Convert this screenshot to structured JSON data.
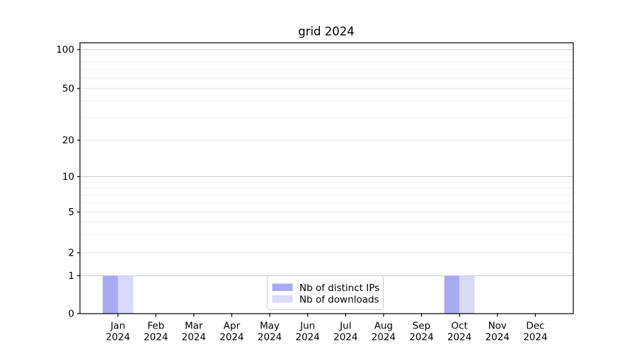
{
  "chart_data": {
    "type": "bar",
    "title": "grid 2024",
    "year_label": "2024",
    "categories": [
      "Jan",
      "Feb",
      "Mar",
      "Apr",
      "May",
      "Jun",
      "Jul",
      "Aug",
      "Sep",
      "Oct",
      "Nov",
      "Dec"
    ],
    "series": [
      {
        "name": "Nb of distinct IPs",
        "color": "#a9a9f2",
        "values": [
          1,
          0,
          0,
          0,
          0,
          0,
          0,
          0,
          0,
          1,
          0,
          0
        ]
      },
      {
        "name": "Nb of downloads",
        "color": "#d9d9f8",
        "values": [
          1,
          0,
          0,
          0,
          0,
          0,
          0,
          0,
          0,
          1,
          0,
          0
        ]
      }
    ],
    "xlabel": "",
    "ylabel": "",
    "y_axis": {
      "scale": "quasi-log",
      "labeled_ticks": [
        0,
        1,
        2,
        5,
        10,
        20,
        50,
        100
      ],
      "minor_gridlines": [
        3,
        4,
        6,
        7,
        8,
        9,
        30,
        40,
        60,
        70,
        80,
        90
      ],
      "ylim": [
        0,
        130
      ]
    },
    "grid": "on",
    "legend": {
      "position": "lower-center"
    },
    "colors": {
      "axis": "#000000",
      "major_grid": "#cacaca",
      "labeled_grid": "#e6e6e6",
      "minor_grid": "#efefef",
      "legend_border": "#cccccc",
      "legend_bg": "#ffffff"
    }
  }
}
